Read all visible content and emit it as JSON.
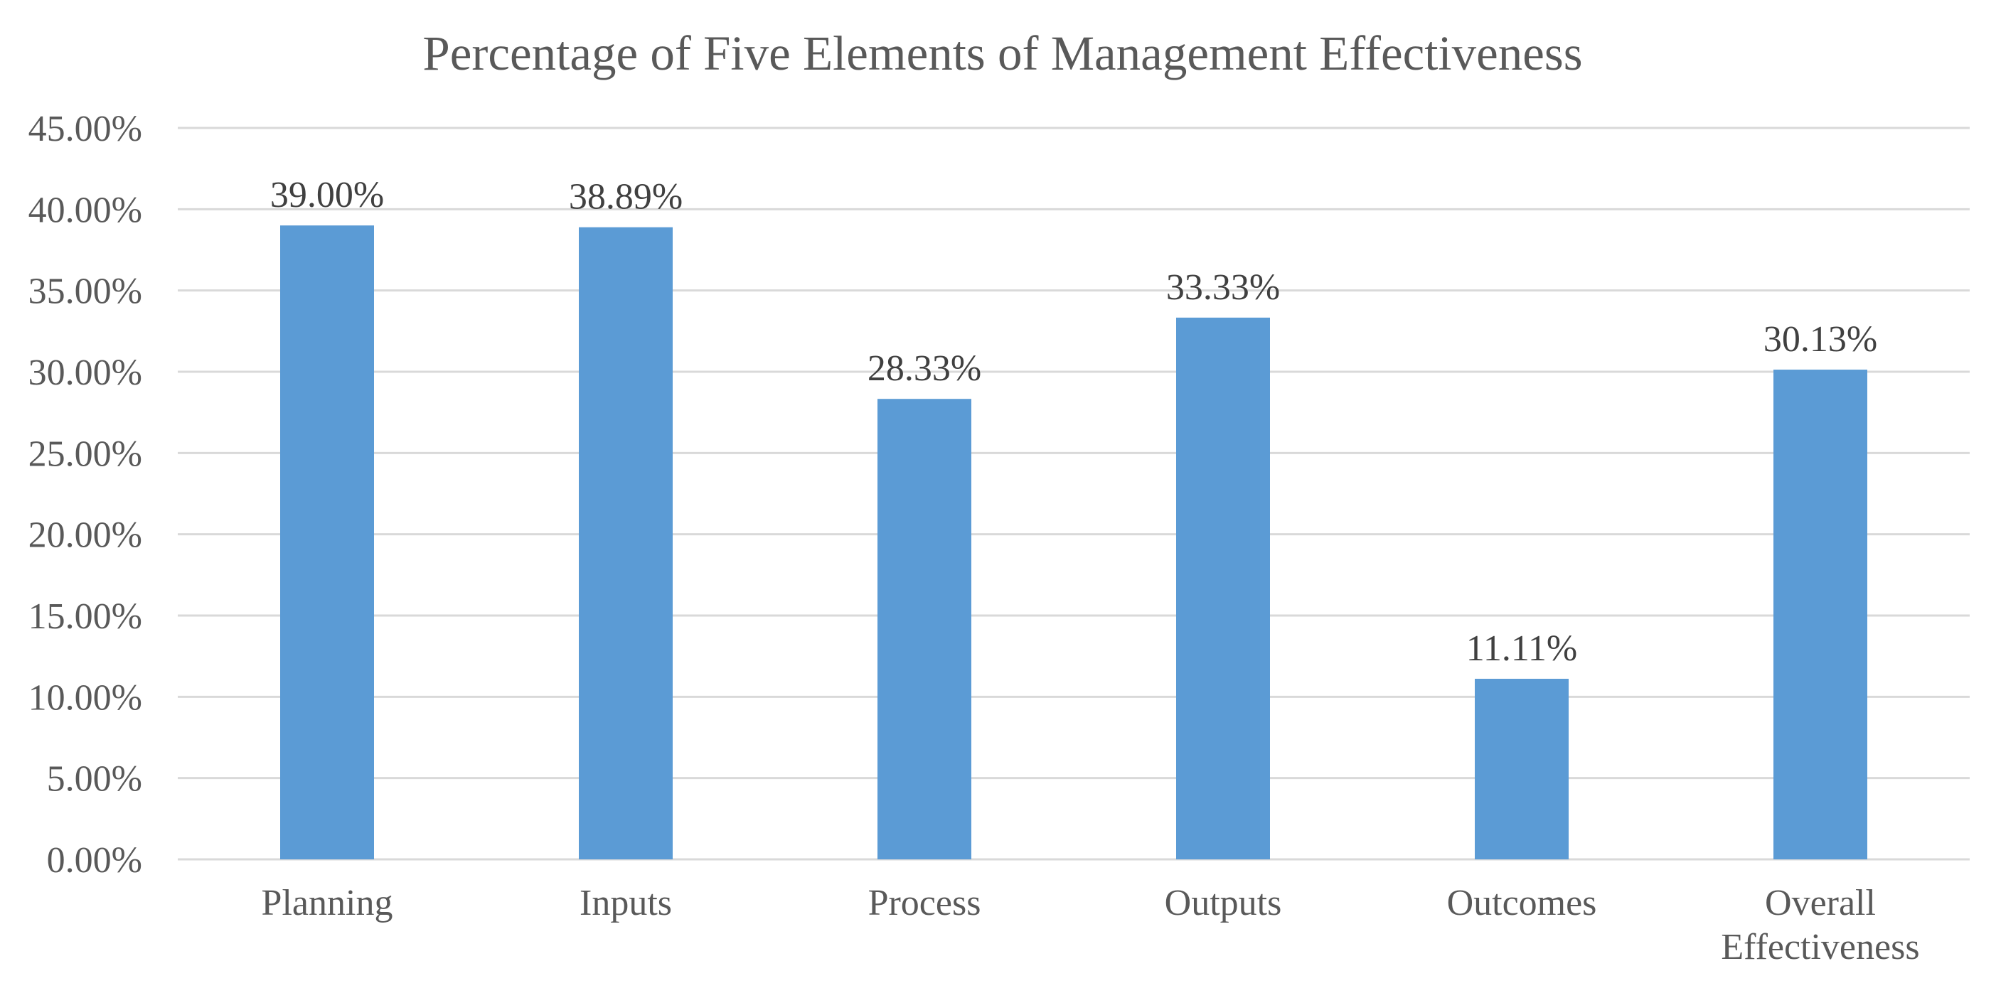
{
  "chart_data": {
    "type": "bar",
    "title": "Percentage of Five Elements of Management Effectiveness",
    "categories": [
      "Planning",
      "Inputs",
      "Process",
      "Outputs",
      "Outcomes",
      "Overall Effectiveness"
    ],
    "category_label_lines": [
      [
        "Planning"
      ],
      [
        "Inputs"
      ],
      [
        "Process"
      ],
      [
        "Outputs"
      ],
      [
        "Outcomes"
      ],
      [
        "Overall",
        "Effectiveness"
      ]
    ],
    "values": [
      39.0,
      38.89,
      28.33,
      33.33,
      11.11,
      30.13
    ],
    "data_labels": [
      "39.00%",
      "38.89%",
      "28.33%",
      "33.33%",
      "11.11%",
      "30.13%"
    ],
    "y_ticks": [
      0,
      5,
      10,
      15,
      20,
      25,
      30,
      35,
      40,
      45
    ],
    "y_tick_labels": [
      "0.00%",
      "5.00%",
      "10.00%",
      "15.00%",
      "20.00%",
      "25.00%",
      "30.00%",
      "35.00%",
      "40.00%",
      "45.00%"
    ],
    "ylim": [
      0,
      45
    ],
    "xlabel": "",
    "ylabel": "",
    "grid": true,
    "legend": "none",
    "bar_color": "#5b9bd5"
  }
}
